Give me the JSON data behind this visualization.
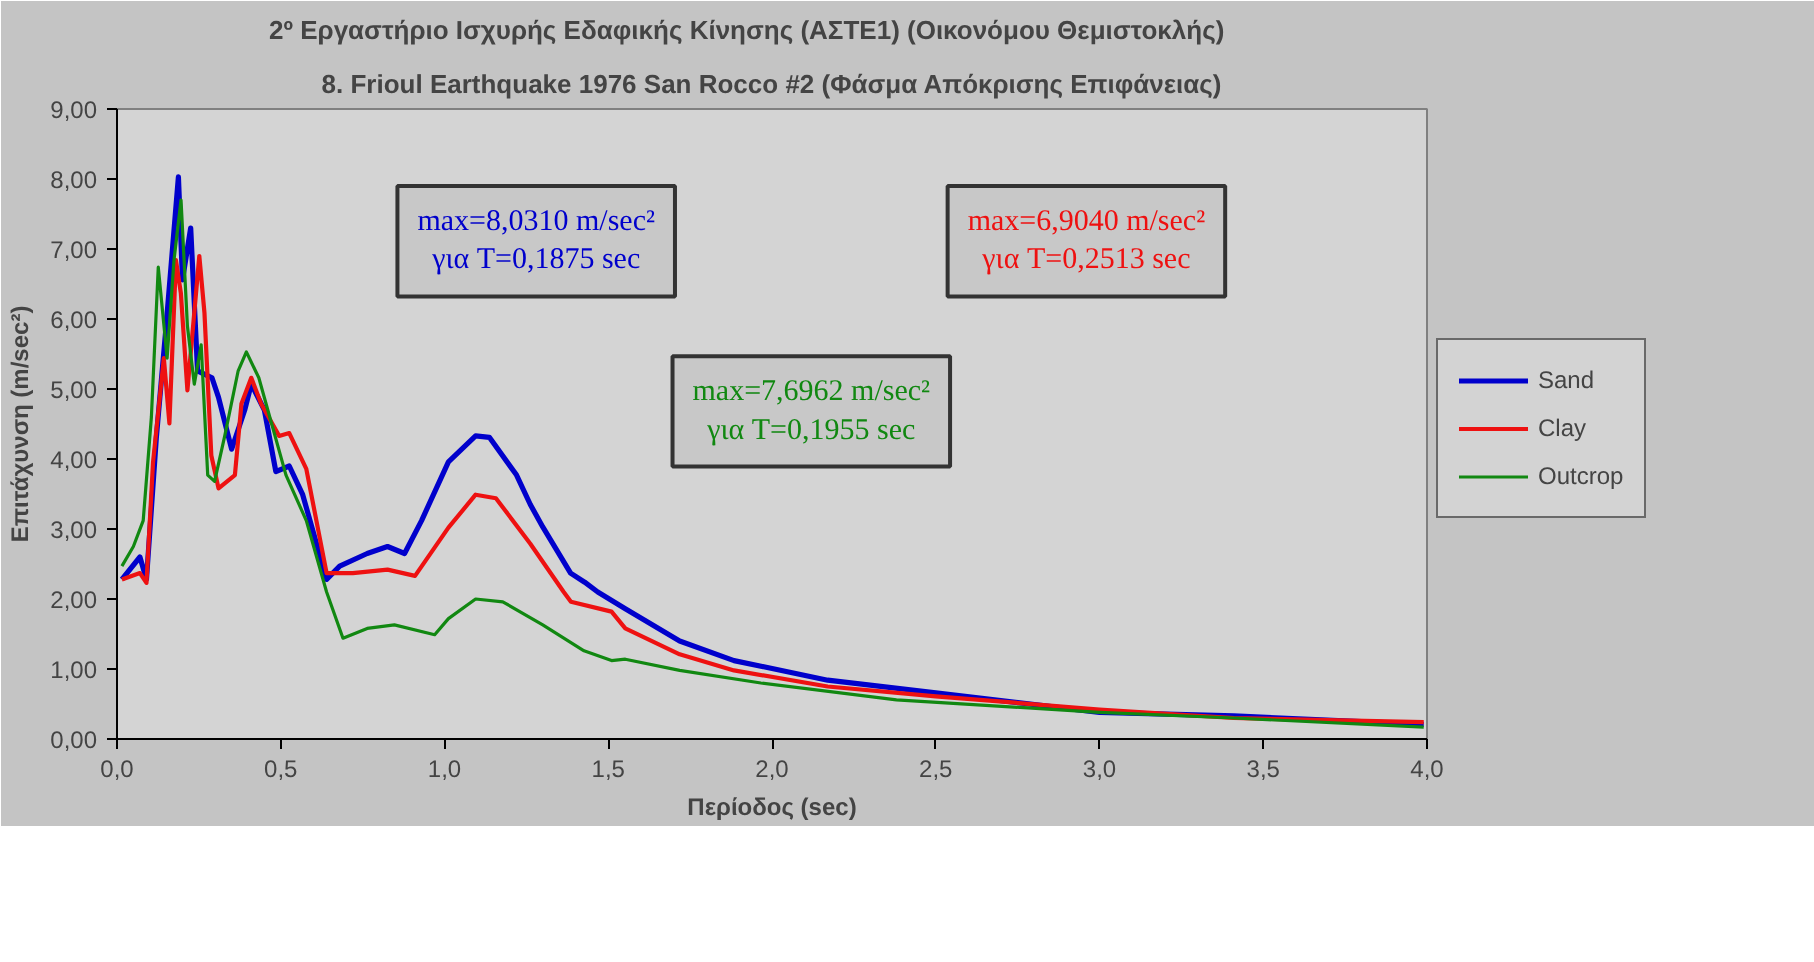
{
  "chart_data": {
    "type": "line",
    "title": "2º Εργαστήριο Ισχυρής Εδαφικής Κίνησης (ΑΣΤΕ1)        (Οικονόμου Θεμιστοκλής)",
    "subtitle": "8. Frioul Earthquake 1976 San Rocco #2 (Φάσμα Απόκρισης Επιφάνειας)",
    "xlabel": "Περίοδος (sec)",
    "ylabel": "Επιτάχυνση (m/sec²)",
    "xlim": [
      0,
      4
    ],
    "ylim": [
      0,
      9
    ],
    "xticks": [
      {
        "value": 0,
        "label": "0,0"
      },
      {
        "value": 0.5,
        "label": "0,5"
      },
      {
        "value": 1,
        "label": "1,0"
      },
      {
        "value": 1.5,
        "label": "1,5"
      },
      {
        "value": 2,
        "label": "2,0"
      },
      {
        "value": 2.5,
        "label": "2,5"
      },
      {
        "value": 3,
        "label": "3,0"
      },
      {
        "value": 3.5,
        "label": "3,5"
      },
      {
        "value": 4,
        "label": "4,0"
      }
    ],
    "yticks": [
      {
        "value": 0,
        "label": "0,00"
      },
      {
        "value": 1,
        "label": "1,00"
      },
      {
        "value": 2,
        "label": "2,00"
      },
      {
        "value": 3,
        "label": "3,00"
      },
      {
        "value": 4,
        "label": "4,00"
      },
      {
        "value": 5,
        "label": "5,00"
      },
      {
        "value": 6,
        "label": "6,00"
      },
      {
        "value": 7,
        "label": "7,00"
      },
      {
        "value": 8,
        "label": "8,00"
      },
      {
        "value": 9,
        "label": "9,00"
      }
    ],
    "grid": false,
    "legend": "right",
    "marker": "none",
    "line_style": "solid",
    "series": [
      {
        "name": "Sand",
        "color": "#0000cc",
        "x": [
          0.015,
          0.07,
          0.09,
          0.12,
          0.15,
          0.1875,
          0.2,
          0.225,
          0.246,
          0.29,
          0.31,
          0.35,
          0.39,
          0.41,
          0.45,
          0.485,
          0.526,
          0.567,
          0.64,
          0.68,
          0.764,
          0.826,
          0.878,
          0.93,
          1.012,
          1.095,
          1.137,
          1.22,
          1.262,
          1.3,
          1.385,
          1.428,
          1.468,
          1.552,
          1.718,
          1.884,
          2.17,
          2.5,
          3.0,
          3.41,
          3.99
        ],
        "values": [
          2.28,
          2.6,
          2.28,
          4.3,
          5.9,
          8.03,
          6.56,
          7.3,
          5.26,
          5.16,
          4.88,
          4.14,
          4.7,
          5.07,
          4.7,
          3.82,
          3.9,
          3.49,
          2.28,
          2.47,
          2.65,
          2.75,
          2.65,
          3.12,
          3.96,
          4.33,
          4.31,
          3.77,
          3.35,
          3.03,
          2.37,
          2.24,
          2.1,
          1.86,
          1.4,
          1.12,
          0.84,
          0.66,
          0.38,
          0.33,
          0.21
        ]
      },
      {
        "name": "Clay",
        "color": "#ee1111",
        "x": [
          0.015,
          0.07,
          0.09,
          0.11,
          0.143,
          0.16,
          0.18,
          0.195,
          0.215,
          0.2513,
          0.267,
          0.288,
          0.31,
          0.36,
          0.38,
          0.41,
          0.44,
          0.495,
          0.526,
          0.578,
          0.64,
          0.72,
          0.826,
          0.91,
          1.012,
          1.095,
          1.157,
          1.262,
          1.364,
          1.386,
          1.51,
          1.552,
          1.718,
          1.884,
          2.17,
          2.5,
          3.0,
          3.41,
          3.99
        ],
        "values": [
          2.28,
          2.37,
          2.23,
          3.95,
          5.44,
          4.51,
          6.84,
          6.37,
          4.98,
          6.9,
          6.09,
          4.05,
          3.58,
          3.77,
          4.79,
          5.16,
          4.79,
          4.33,
          4.37,
          3.86,
          2.37,
          2.37,
          2.42,
          2.33,
          3.02,
          3.49,
          3.44,
          2.79,
          2.1,
          1.96,
          1.82,
          1.58,
          1.21,
          0.98,
          0.75,
          0.61,
          0.42,
          0.3,
          0.24
        ]
      },
      {
        "name": "Outcrop",
        "color": "#118811",
        "x": [
          0.015,
          0.05,
          0.08,
          0.105,
          0.126,
          0.153,
          0.174,
          0.1955,
          0.215,
          0.236,
          0.257,
          0.277,
          0.298,
          0.329,
          0.37,
          0.395,
          0.433,
          0.516,
          0.578,
          0.64,
          0.69,
          0.764,
          0.847,
          0.97,
          1.012,
          1.095,
          1.178,
          1.3,
          1.426,
          1.51,
          1.552,
          1.718,
          1.966,
          2.38,
          3.0,
          3.41,
          3.99
        ],
        "values": [
          2.47,
          2.75,
          3.12,
          4.6,
          6.74,
          5.44,
          6.84,
          7.7,
          5.9,
          5.07,
          5.63,
          3.77,
          3.68,
          4.33,
          5.26,
          5.53,
          5.16,
          3.77,
          3.12,
          2.1,
          1.44,
          1.58,
          1.63,
          1.49,
          1.72,
          2.0,
          1.96,
          1.63,
          1.26,
          1.12,
          1.14,
          0.98,
          0.8,
          0.56,
          0.38,
          0.3,
          0.17
        ]
      }
    ],
    "annotations": [
      "max=8,0310 m/sec²\nγια T=0,1875 sec",
      "max=6,9040 m/sec²\nγια T=0,2513 sec",
      "max=7,6962 m/sec²\nγια T=0,1955 sec"
    ]
  }
}
